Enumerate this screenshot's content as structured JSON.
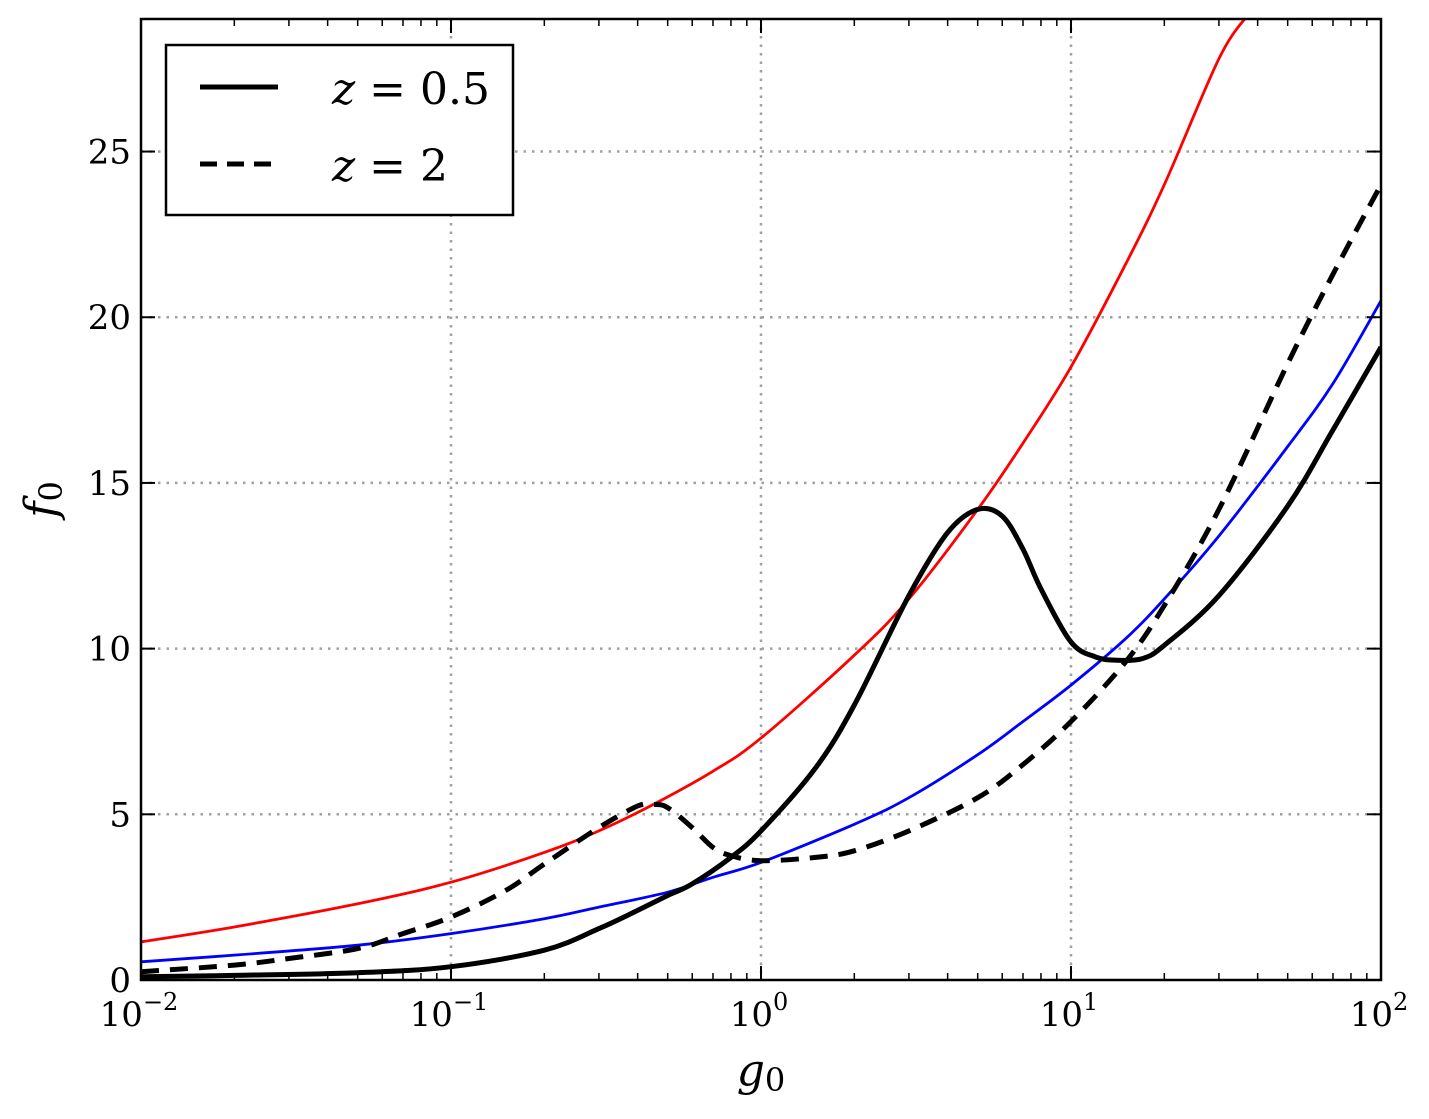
{
  "chart_data": {
    "type": "line",
    "xlabel": "g0",
    "ylabel": "f0",
    "xscale": "log",
    "xlim": [
      0.01,
      100
    ],
    "ylim": [
      0,
      29
    ],
    "grid": true,
    "legend_position": "top-left",
    "x_ticks": [
      {
        "value": 0.01,
        "base": "10",
        "exp": "−2"
      },
      {
        "value": 0.1,
        "base": "10",
        "exp": "−1"
      },
      {
        "value": 1,
        "base": "10",
        "exp": "0"
      },
      {
        "value": 10,
        "base": "10",
        "exp": "1"
      },
      {
        "value": 100,
        "base": "10",
        "exp": "2"
      }
    ],
    "y_ticks": [
      "0",
      "5",
      "10",
      "15",
      "20",
      "25"
    ],
    "y_tick_values": [
      0,
      5,
      10,
      15,
      20,
      25
    ],
    "legend": [
      {
        "series": "z05",
        "label_var": "z",
        "label_eq": " = 0.5"
      },
      {
        "series": "z2",
        "label_var": "z",
        "label_eq": " = 2"
      }
    ],
    "series": [
      {
        "id": "z05",
        "name": "z = 0.5",
        "color": "#000000",
        "style": "solid",
        "points": [
          [
            0.01,
            0.1
          ],
          [
            0.02,
            0.14
          ],
          [
            0.05,
            0.22
          ],
          [
            0.1,
            0.4
          ],
          [
            0.2,
            0.9
          ],
          [
            0.3,
            1.55
          ],
          [
            0.4,
            2.1
          ],
          [
            0.5,
            2.55
          ],
          [
            0.6,
            2.9
          ],
          [
            0.8,
            3.7
          ],
          [
            1,
            4.5
          ],
          [
            1.5,
            6.4
          ],
          [
            2,
            8.3
          ],
          [
            3,
            11.6
          ],
          [
            4,
            13.5
          ],
          [
            5,
            14.2
          ],
          [
            6,
            14.0
          ],
          [
            7,
            13.0
          ],
          [
            8,
            11.8
          ],
          [
            10,
            10.2
          ],
          [
            12,
            9.75
          ],
          [
            14,
            9.65
          ],
          [
            17,
            9.7
          ],
          [
            20,
            10.1
          ],
          [
            30,
            11.6
          ],
          [
            50,
            14.3
          ],
          [
            70,
            16.6
          ],
          [
            100,
            19.1
          ]
        ]
      },
      {
        "id": "z2",
        "name": "z = 2",
        "color": "#000000",
        "style": "dashed",
        "points": [
          [
            0.01,
            0.25
          ],
          [
            0.02,
            0.45
          ],
          [
            0.03,
            0.65
          ],
          [
            0.05,
            0.95
          ],
          [
            0.07,
            1.4
          ],
          [
            0.1,
            1.9
          ],
          [
            0.15,
            2.7
          ],
          [
            0.2,
            3.5
          ],
          [
            0.3,
            4.6
          ],
          [
            0.4,
            5.25
          ],
          [
            0.45,
            5.3
          ],
          [
            0.5,
            5.2
          ],
          [
            0.6,
            4.6
          ],
          [
            0.7,
            4.0
          ],
          [
            0.8,
            3.75
          ],
          [
            1,
            3.6
          ],
          [
            1.5,
            3.7
          ],
          [
            2,
            3.9
          ],
          [
            3,
            4.5
          ],
          [
            5,
            5.5
          ],
          [
            7,
            6.5
          ],
          [
            10,
            7.8
          ],
          [
            15,
            9.6
          ],
          [
            20,
            11.3
          ],
          [
            30,
            14.2
          ],
          [
            50,
            18.6
          ],
          [
            70,
            21.3
          ],
          [
            100,
            24.0
          ]
        ]
      },
      {
        "id": "red",
        "name": "",
        "color": "#ff0000",
        "style": "solid",
        "points": [
          [
            0.01,
            1.15
          ],
          [
            0.02,
            1.6
          ],
          [
            0.05,
            2.3
          ],
          [
            0.1,
            2.95
          ],
          [
            0.2,
            3.85
          ],
          [
            0.3,
            4.5
          ],
          [
            0.45,
            5.3
          ],
          [
            0.7,
            6.3
          ],
          [
            1,
            7.3
          ],
          [
            2,
            9.8
          ],
          [
            3,
            11.5
          ],
          [
            5,
            14.2
          ],
          [
            7,
            16.2
          ],
          [
            10,
            18.5
          ],
          [
            15,
            21.6
          ],
          [
            20,
            24.0
          ],
          [
            30,
            27.8
          ],
          [
            37,
            29.1
          ]
        ]
      },
      {
        "id": "blue",
        "name": "",
        "color": "#0000ff",
        "style": "solid",
        "points": [
          [
            0.01,
            0.55
          ],
          [
            0.02,
            0.75
          ],
          [
            0.05,
            1.05
          ],
          [
            0.1,
            1.4
          ],
          [
            0.2,
            1.85
          ],
          [
            0.3,
            2.2
          ],
          [
            0.5,
            2.65
          ],
          [
            0.7,
            3.1
          ],
          [
            1,
            3.55
          ],
          [
            2,
            4.7
          ],
          [
            3,
            5.5
          ],
          [
            5,
            6.8
          ],
          [
            7,
            7.8
          ],
          [
            10,
            8.9
          ],
          [
            15,
            10.3
          ],
          [
            20,
            11.5
          ],
          [
            30,
            13.4
          ],
          [
            50,
            16.1
          ],
          [
            70,
            18.0
          ],
          [
            100,
            20.5
          ]
        ]
      }
    ]
  }
}
